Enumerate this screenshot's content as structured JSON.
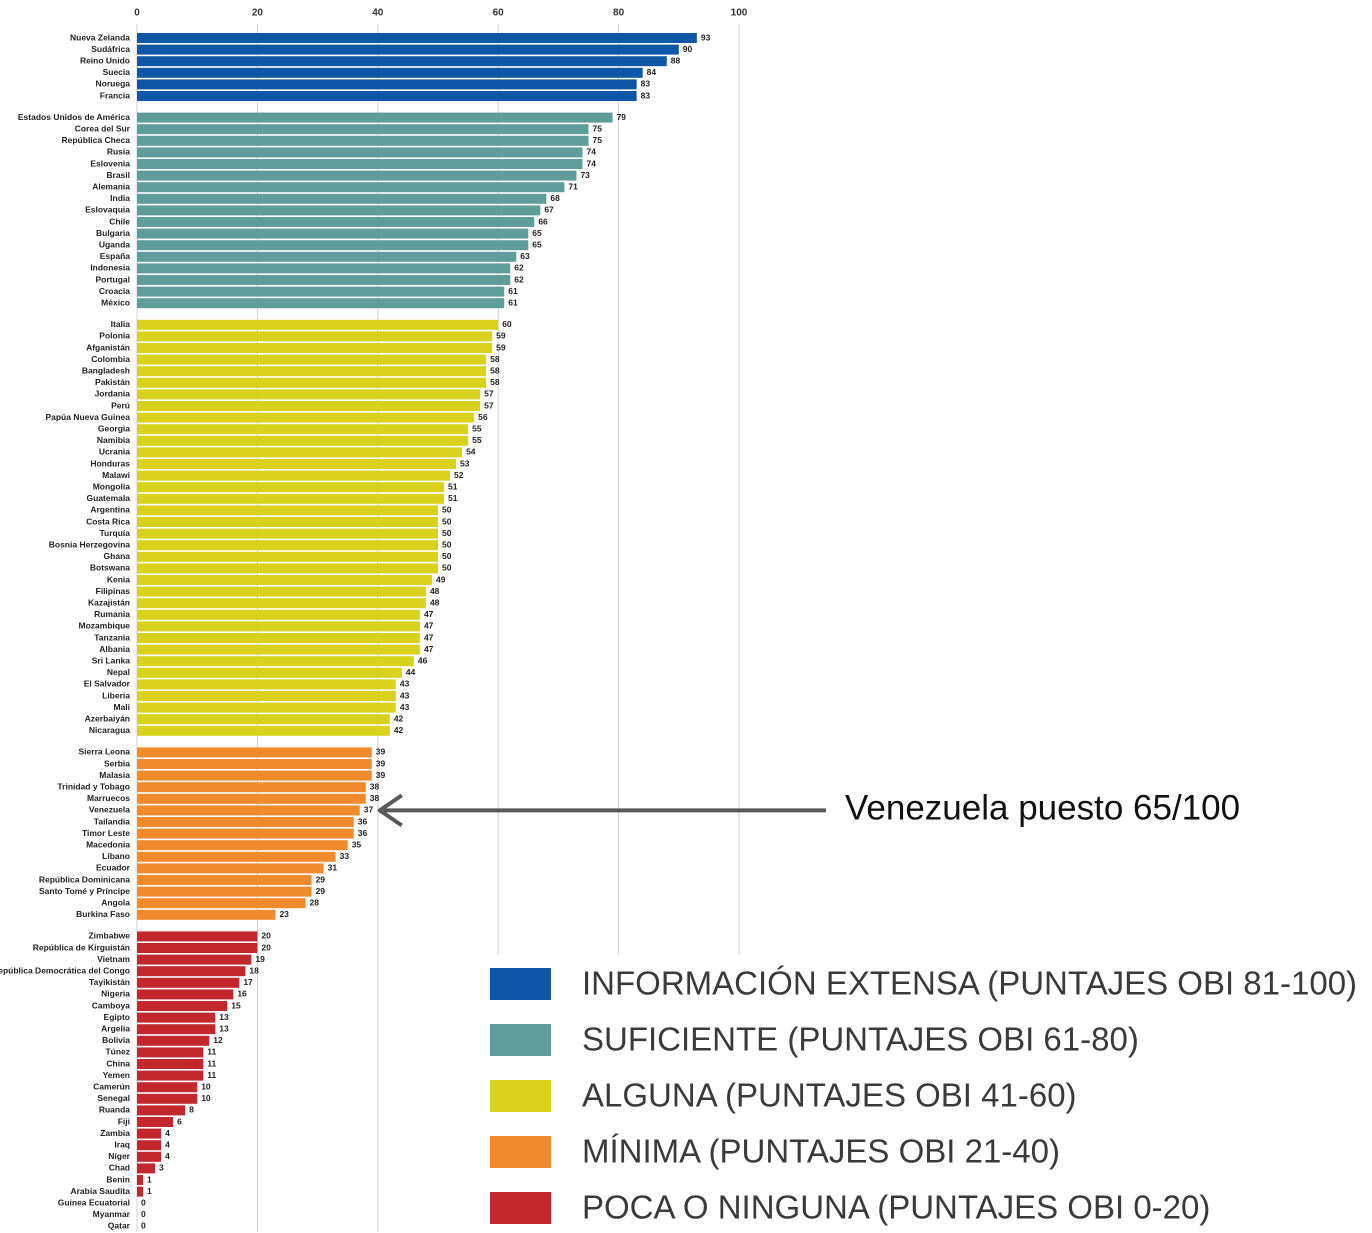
{
  "chart_data": {
    "type": "bar",
    "orientation": "horizontal",
    "xlim": [
      0,
      100
    ],
    "xticks": [
      0,
      20,
      40,
      60,
      80,
      100
    ],
    "grid": true,
    "annotation": {
      "text": "Venezuela puesto 65/100",
      "group": 3,
      "index": 5
    },
    "groups": [
      {
        "name": "INFORMACIÓN EXTENSA (PUNTAJES OBI 81-100)",
        "color": "#0f57a6",
        "categories": [
          "Nueva Zelanda",
          "Sudáfrica",
          "Reino Unido",
          "Suecia",
          "Noruega",
          "Francia"
        ],
        "values": [
          93,
          90,
          88,
          84,
          83,
          83
        ]
      },
      {
        "name": "SUFICIENTE (PUNTAJES OBI 61-80)",
        "color": "#5f9d9b",
        "categories": [
          "Estados Unidos de América",
          "Corea del Sur",
          "República Checa",
          "Rusia",
          "Eslovenia",
          "Brasil",
          "Alemania",
          "India",
          "Eslovaquia",
          "Chile",
          "Bulgaria",
          "Uganda",
          "España",
          "Indonesia",
          "Portugal",
          "Croacia",
          "México"
        ],
        "values": [
          79,
          75,
          75,
          74,
          74,
          73,
          71,
          68,
          67,
          66,
          65,
          65,
          63,
          62,
          62,
          61,
          61
        ]
      },
      {
        "name": "ALGUNA (PUNTAJES OBI 41-60)",
        "color": "#d9d21d",
        "categories": [
          "Italia",
          "Polonia",
          "Afganistán",
          "Colombia",
          "Bangladesh",
          "Pakistán",
          "Jordania",
          "Perú",
          "Papúa Nueva Guinea",
          "Georgia",
          "Namibia",
          "Ucrania",
          "Honduras",
          "Malawi",
          "Mongolia",
          "Guatemala",
          "Argentina",
          "Costa Rica",
          "Turquía",
          "Bosnia Herzegovina",
          "Ghana",
          "Botswana",
          "Kenia",
          "Filipinas",
          "Kazajistán",
          "Rumania",
          "Mozambique",
          "Tanzania",
          "Albania",
          "Sri Lanka",
          "Nepal",
          "El Salvador",
          "Liberia",
          "Mali",
          "Azerbaiyán",
          "Nicaragua"
        ],
        "values": [
          60,
          59,
          59,
          58,
          58,
          58,
          57,
          57,
          56,
          55,
          55,
          54,
          53,
          52,
          51,
          51,
          50,
          50,
          50,
          50,
          50,
          50,
          49,
          48,
          48,
          47,
          47,
          47,
          47,
          46,
          44,
          43,
          43,
          43,
          42,
          42
        ]
      },
      {
        "name": "MÍNIMA (PUNTAJES OBI 21-40)",
        "color": "#f08a2c",
        "categories": [
          "Sierra Leona",
          "Serbia",
          "Malasia",
          "Trinidad y Tobago",
          "Marruecos",
          "Venezuela",
          "Tailandia",
          "Timor Leste",
          "Macedonia",
          "Líbano",
          "Ecuador",
          "República Dominicana",
          "Santo Tomé y Príncipe",
          "Angola",
          "Burkina Faso"
        ],
        "values": [
          39,
          39,
          39,
          38,
          38,
          37,
          36,
          36,
          35,
          33,
          31,
          29,
          29,
          28,
          23
        ]
      },
      {
        "name": "POCA O NINGUNA (PUNTAJES OBI 0-20)",
        "color": "#c1272b",
        "categories": [
          "Zimbabwe",
          "República de Kirguistán",
          "Vietnam",
          "República Democrática del Congo",
          "Tayikistán",
          "Nigeria",
          "Camboya",
          "Egipto",
          "Argelia",
          "Bolivia",
          "Túnez",
          "China",
          "Yemen",
          "Camerún",
          "Senegal",
          "Ruanda",
          "Fiji",
          "Zambia",
          "Iraq",
          "Níger",
          "Chad",
          "Benin",
          "Arabia Saudita",
          "Guinea Ecuatorial",
          "Myanmar",
          "Qatar"
        ],
        "values": [
          20,
          20,
          19,
          18,
          17,
          16,
          15,
          13,
          13,
          12,
          11,
          11,
          11,
          10,
          10,
          8,
          6,
          4,
          4,
          4,
          3,
          1,
          1,
          0,
          0,
          0
        ]
      }
    ]
  }
}
